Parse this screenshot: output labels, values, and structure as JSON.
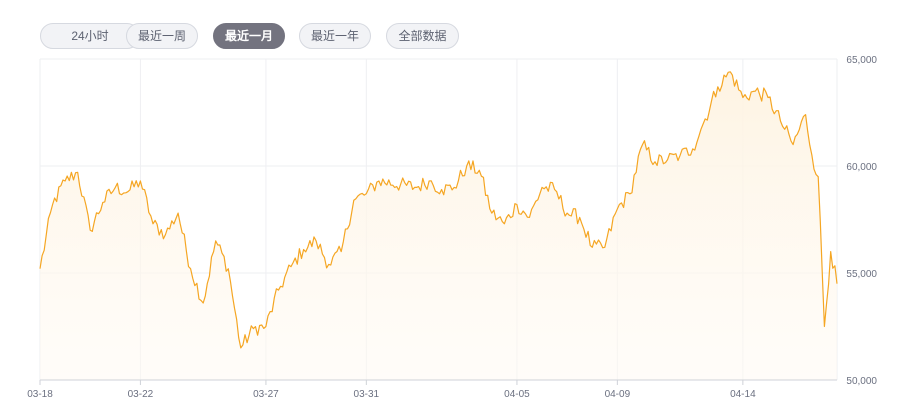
{
  "range_tabs": [
    {
      "label": "24小时",
      "active": false
    },
    {
      "label": "最近一周",
      "active": false
    },
    {
      "label": "最近一月",
      "active": true
    },
    {
      "label": "最近一年",
      "active": false
    },
    {
      "label": "全部数据",
      "active": false
    }
  ],
  "colors": {
    "line": "#f5a623",
    "area_top": "#fef5e6",
    "grid": "#eeeff2",
    "active_tab": "#73737f"
  },
  "chart_data": {
    "type": "area",
    "title": "",
    "xlabel": "",
    "ylabel": "",
    "x_tick_labels": [
      "03-18",
      "03-22",
      "03-27",
      "03-31",
      "04-05",
      "04-09",
      "04-14"
    ],
    "y_tick_labels": [
      "65,000",
      "60,000",
      "55,000",
      "50,000"
    ],
    "y_ticks": [
      65000,
      60000,
      55000,
      50000
    ],
    "ylim": [
      50000,
      65000
    ],
    "grid": true,
    "series": [
      {
        "x": [
          "03-18 00:00",
          "03-18 12:00",
          "03-19 00:00",
          "03-19 12:00",
          "03-20 00:00",
          "03-20 12:00",
          "03-21 00:00",
          "03-21 12:00",
          "03-22 00:00",
          "03-22 12:00",
          "03-23 00:00",
          "03-23 12:00",
          "03-24 00:00",
          "03-24 12:00",
          "03-25 00:00",
          "03-25 12:00",
          "03-26 00:00",
          "03-26 12:00",
          "03-27 00:00",
          "03-27 12:00",
          "03-28 00:00",
          "03-28 12:00",
          "03-29 00:00",
          "03-29 12:00",
          "03-30 00:00",
          "03-30 12:00",
          "03-31 00:00",
          "03-31 12:00",
          "04-01 00:00",
          "04-01 12:00",
          "04-02 00:00",
          "04-02 12:00",
          "04-03 00:00",
          "04-03 12:00",
          "04-04 00:00",
          "04-04 12:00",
          "04-05 00:00",
          "04-05 12:00",
          "04-06 00:00",
          "04-06 12:00",
          "04-07 00:00",
          "04-07 12:00",
          "04-08 00:00",
          "04-08 12:00",
          "04-09 00:00",
          "04-09 12:00",
          "04-10 00:00",
          "04-10 12:00",
          "04-11 00:00",
          "04-11 12:00",
          "04-12 00:00",
          "04-12 12:00",
          "04-13 00:00",
          "04-13 12:00",
          "04-14 00:00",
          "04-14 12:00",
          "04-15 00:00",
          "04-15 12:00",
          "04-16 00:00",
          "04-16 12:00",
          "04-16 18:00",
          "04-17 00:00",
          "04-17 06:00",
          "04-17 12:00",
          "04-17 18:00"
        ],
        "values": [
          55200,
          58200,
          59300,
          59700,
          57000,
          58300,
          59000,
          58800,
          59300,
          57300,
          56800,
          57800,
          55200,
          53600,
          56500,
          55200,
          51500,
          52400,
          52500,
          54200,
          55300,
          56100,
          56500,
          55400,
          56000,
          58400,
          58700,
          59300,
          59000,
          59300,
          58900,
          59000,
          60000,
          59800,
          57800,
          57300,
          58200,
          57600,
          59000,
          58900,
          57800,
          57600,
          56200,
          56200,
          58000,
          58700,
          61000,
          60200,
          60300,
          60500,
          60800,
          62200,
          63700,
          64400,
          63200,
          63500,
          63200,
          62100,
          61000,
          62400,
          60500,
          59500,
          52500,
          56000,
          54500
        ]
      }
    ]
  }
}
